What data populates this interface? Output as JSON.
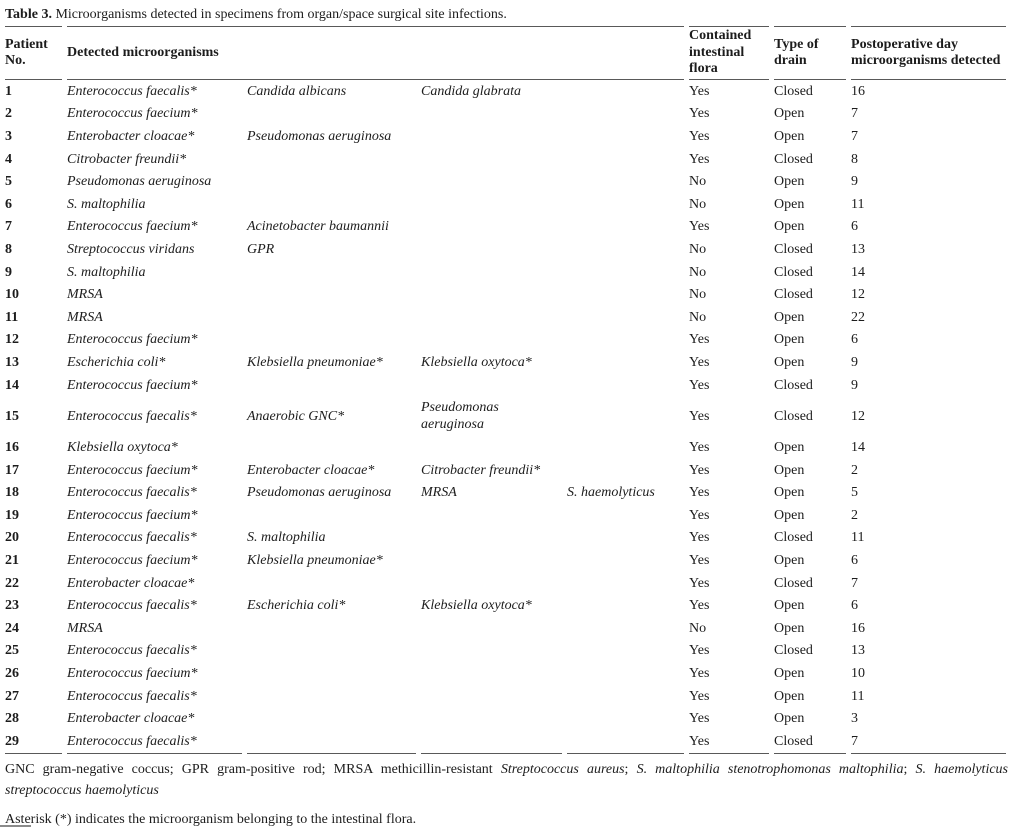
{
  "title": {
    "label": "Table 3.",
    "text": "Microorganisms detected in specimens from organ/space surgical site infections."
  },
  "table": {
    "headers": {
      "patient": "Patient No.",
      "organisms": "Detected microorganisms",
      "flora": "Contained intestinal flora",
      "drain": "Type of drain",
      "postop_day": "Postoperative day microorganisms detected"
    },
    "rows": [
      {
        "no": "1",
        "organisms": [
          "Enterococcus faecalis*",
          "Candida albicans",
          "Candida glabrata",
          ""
        ],
        "flora": "Yes",
        "drain": "Closed",
        "day": "16"
      },
      {
        "no": "2",
        "organisms": [
          "Enterococcus faecium*",
          "",
          "",
          ""
        ],
        "flora": "Yes",
        "drain": "Open",
        "day": "7"
      },
      {
        "no": "3",
        "organisms": [
          "Enterobacter cloacae*",
          "Pseudomonas aeruginosa",
          "",
          ""
        ],
        "flora": "Yes",
        "drain": "Open",
        "day": "7"
      },
      {
        "no": "4",
        "organisms": [
          "Citrobacter freundii*",
          "",
          "",
          ""
        ],
        "flora": "Yes",
        "drain": "Closed",
        "day": "8"
      },
      {
        "no": "5",
        "organisms": [
          "Pseudomonas aeruginosa",
          "",
          "",
          ""
        ],
        "flora": "No",
        "drain": "Open",
        "day": "9"
      },
      {
        "no": "6",
        "organisms": [
          "S. maltophilia",
          "",
          "",
          ""
        ],
        "flora": "No",
        "drain": "Open",
        "day": "11"
      },
      {
        "no": "7",
        "organisms": [
          "Enterococcus faecium*",
          "Acinetobacter baumannii",
          "",
          ""
        ],
        "flora": "Yes",
        "drain": "Open",
        "day": "6"
      },
      {
        "no": "8",
        "organisms": [
          "Streptococcus viridans",
          "GPR",
          "",
          ""
        ],
        "flora": "No",
        "drain": "Closed",
        "day": "13"
      },
      {
        "no": "9",
        "organisms": [
          "S. maltophilia",
          "",
          "",
          ""
        ],
        "flora": "No",
        "drain": "Closed",
        "day": "14"
      },
      {
        "no": "10",
        "organisms": [
          "MRSA",
          "",
          "",
          ""
        ],
        "flora": "No",
        "drain": "Closed",
        "day": "12"
      },
      {
        "no": "11",
        "organisms": [
          "MRSA",
          "",
          "",
          ""
        ],
        "flora": "No",
        "drain": "Open",
        "day": "22"
      },
      {
        "no": "12",
        "organisms": [
          "Enterococcus faecium*",
          "",
          "",
          ""
        ],
        "flora": "Yes",
        "drain": "Open",
        "day": "6"
      },
      {
        "no": "13",
        "organisms": [
          "Escherichia coli*",
          "Klebsiella pneumoniae*",
          "Klebsiella oxytoca*",
          ""
        ],
        "flora": "Yes",
        "drain": "Open",
        "day": "9"
      },
      {
        "no": "14",
        "organisms": [
          "Enterococcus faecium*",
          "",
          "",
          ""
        ],
        "flora": "Yes",
        "drain": "Closed",
        "day": "9"
      },
      {
        "no": "15",
        "organisms": [
          "Enterococcus faecalis*",
          "Anaerobic GNC*",
          "Pseudomonas aeruginosa",
          ""
        ],
        "flora": "Yes",
        "drain": "Closed",
        "day": "12"
      },
      {
        "no": "16",
        "organisms": [
          "Klebsiella oxytoca*",
          "",
          "",
          ""
        ],
        "flora": "Yes",
        "drain": "Open",
        "day": "14"
      },
      {
        "no": "17",
        "organisms": [
          "Enterococcus faecium*",
          "Enterobacter cloacae*",
          "Citrobacter freundii*",
          ""
        ],
        "flora": "Yes",
        "drain": "Open",
        "day": "2"
      },
      {
        "no": "18",
        "organisms": [
          "Enterococcus faecalis*",
          "Pseudomonas aeruginosa",
          "MRSA",
          "S. haemolyticus"
        ],
        "flora": "Yes",
        "drain": "Open",
        "day": "5"
      },
      {
        "no": "19",
        "organisms": [
          "Enterococcus faecium*",
          "",
          "",
          ""
        ],
        "flora": "Yes",
        "drain": "Open",
        "day": "2"
      },
      {
        "no": "20",
        "organisms": [
          "Enterococcus faecalis*",
          "S. maltophilia",
          "",
          ""
        ],
        "flora": "Yes",
        "drain": "Closed",
        "day": "11"
      },
      {
        "no": "21",
        "organisms": [
          "Enterococcus faecium*",
          "Klebsiella pneumoniae*",
          "",
          ""
        ],
        "flora": "Yes",
        "drain": "Open",
        "day": "6"
      },
      {
        "no": "22",
        "organisms": [
          "Enterobacter cloacae*",
          "",
          "",
          ""
        ],
        "flora": "Yes",
        "drain": "Closed",
        "day": "7"
      },
      {
        "no": "23",
        "organisms": [
          "Enterococcus faecalis*",
          "Escherichia coli*",
          "Klebsiella oxytoca*",
          ""
        ],
        "flora": "Yes",
        "drain": "Open",
        "day": "6"
      },
      {
        "no": "24",
        "organisms": [
          "MRSA",
          "",
          "",
          ""
        ],
        "flora": "No",
        "drain": "Open",
        "day": "16"
      },
      {
        "no": "25",
        "organisms": [
          "Enterococcus faecalis*",
          "",
          "",
          ""
        ],
        "flora": "Yes",
        "drain": "Closed",
        "day": "13"
      },
      {
        "no": "26",
        "organisms": [
          "Enterococcus faecium*",
          "",
          "",
          ""
        ],
        "flora": "Yes",
        "drain": "Open",
        "day": "10"
      },
      {
        "no": "27",
        "organisms": [
          "Enterococcus faecalis*",
          "",
          "",
          ""
        ],
        "flora": "Yes",
        "drain": "Open",
        "day": "11"
      },
      {
        "no": "28",
        "organisms": [
          "Enterobacter cloacae*",
          "",
          "",
          ""
        ],
        "flora": "Yes",
        "drain": "Open",
        "day": "3"
      },
      {
        "no": "29",
        "organisms": [
          "Enterococcus faecalis*",
          "",
          "",
          ""
        ],
        "flora": "Yes",
        "drain": "Closed",
        "day": "7"
      }
    ]
  },
  "footnotes": {
    "abbreviations": [
      {
        "text": "GNC gram-negative coccus; GPR gram-positive rod; MRSA methicillin-resistant ",
        "italic": false
      },
      {
        "text": "Streptococcus aureus",
        "italic": true
      },
      {
        "text": "; ",
        "italic": false
      },
      {
        "text": "S. maltophilia stenotrophomonas maltophilia",
        "italic": true
      },
      {
        "text": "; ",
        "italic": false
      },
      {
        "text": "S. haemolyticus streptococcus haemolyticus",
        "italic": true
      }
    ],
    "asterisk_note": "Asterisk (*) indicates the microorganism belonging to the intestinal flora."
  }
}
